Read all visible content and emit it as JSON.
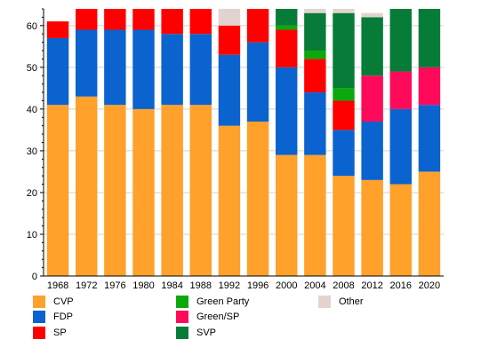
{
  "chart_data": {
    "type": "bar",
    "stacked": true,
    "categories": [
      "1968",
      "1972",
      "1976",
      "1980",
      "1984",
      "1988",
      "1992",
      "1996",
      "2000",
      "2004",
      "2008",
      "2012",
      "2016",
      "2020"
    ],
    "ylim": [
      0,
      64
    ],
    "yticks": [
      0,
      10,
      20,
      30,
      40,
      50,
      60
    ],
    "grid": true,
    "legend_position": "bottom",
    "series": [
      {
        "name": "CVP",
        "color": "#ffa12a",
        "values": [
          41,
          43,
          41,
          40,
          41,
          41,
          36,
          37,
          29,
          29,
          24,
          23,
          22,
          25
        ]
      },
      {
        "name": "FDP",
        "color": "#0b63cf",
        "values": [
          16,
          16,
          18,
          19,
          17,
          17,
          17,
          19,
          21,
          15,
          11,
          14,
          18,
          16
        ]
      },
      {
        "name": "SP",
        "color": "#ff0000",
        "values": [
          4,
          5,
          5,
          5,
          6,
          6,
          7,
          8,
          9,
          8,
          7,
          0,
          0,
          0
        ]
      },
      {
        "name": "Green Party",
        "color": "#0ba90b",
        "values": [
          0,
          0,
          0,
          0,
          0,
          0,
          0,
          0,
          1,
          2,
          3,
          0,
          0,
          0
        ]
      },
      {
        "name": "Green/SP",
        "color": "#ff0a5a",
        "values": [
          0,
          0,
          0,
          0,
          0,
          0,
          0,
          0,
          0,
          0,
          0,
          11,
          9,
          9
        ]
      },
      {
        "name": "SVP",
        "color": "#077c38",
        "values": [
          0,
          0,
          0,
          0,
          0,
          0,
          0,
          0,
          4,
          9,
          18,
          14,
          15,
          14
        ]
      },
      {
        "name": "Other",
        "color": "#e3d3cf",
        "values": [
          0,
          0,
          0,
          0,
          0,
          0,
          4,
          0,
          0,
          1,
          1,
          1,
          0,
          0
        ]
      }
    ]
  },
  "legend": {
    "columns": [
      [
        "CVP",
        "FDP",
        "SP"
      ],
      [
        "Green Party",
        "Green/SP",
        "SVP"
      ],
      [
        "Other"
      ]
    ]
  }
}
